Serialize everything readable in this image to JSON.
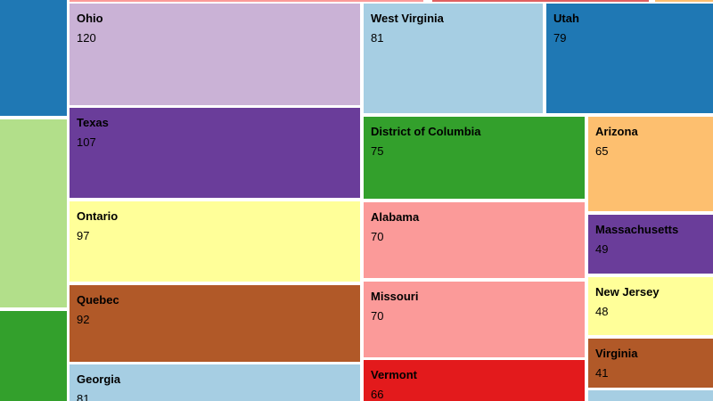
{
  "chart_data": {
    "type": "treemap",
    "cells": [
      {
        "name": "",
        "value": null,
        "color": "#1f78b4"
      },
      {
        "name": "",
        "value": null,
        "color": "#b2df8a"
      },
      {
        "name": "",
        "value": null,
        "color": "#33a02c"
      },
      {
        "name": "",
        "value": null,
        "color": "#fb9a99"
      },
      {
        "name": "",
        "value": null,
        "color": "#e06060"
      },
      {
        "name": "",
        "value": null,
        "color": "#fdbf6f"
      },
      {
        "name": "Ohio",
        "value": 120,
        "color": "#cab2d6"
      },
      {
        "name": "Texas",
        "value": 107,
        "color": "#6a3d9a"
      },
      {
        "name": "Ontario",
        "value": 97,
        "color": "#ffff99"
      },
      {
        "name": "Quebec",
        "value": 92,
        "color": "#b15928"
      },
      {
        "name": "Georgia",
        "value": 81,
        "color": "#a6cee3"
      },
      {
        "name": "West Virginia",
        "value": 81,
        "color": "#a6cee3"
      },
      {
        "name": "Utah",
        "value": 79,
        "color": "#1f78b4"
      },
      {
        "name": "District of Columbia",
        "value": 75,
        "color": "#33a02c"
      },
      {
        "name": "Alabama",
        "value": 70,
        "color": "#fb9a99"
      },
      {
        "name": "Missouri",
        "value": 70,
        "color": "#fb9a99"
      },
      {
        "name": "Vermont",
        "value": 66,
        "color": "#e31a1c"
      },
      {
        "name": "Arizona",
        "value": 65,
        "color": "#fdbf6f"
      },
      {
        "name": "Massachusetts",
        "value": 49,
        "color": "#6a3d9a"
      },
      {
        "name": "New Jersey",
        "value": 48,
        "color": "#ffff99"
      },
      {
        "name": "Virginia",
        "value": 41,
        "color": "#b15928"
      },
      {
        "name": "",
        "value": null,
        "color": "#a6cee3"
      }
    ]
  }
}
